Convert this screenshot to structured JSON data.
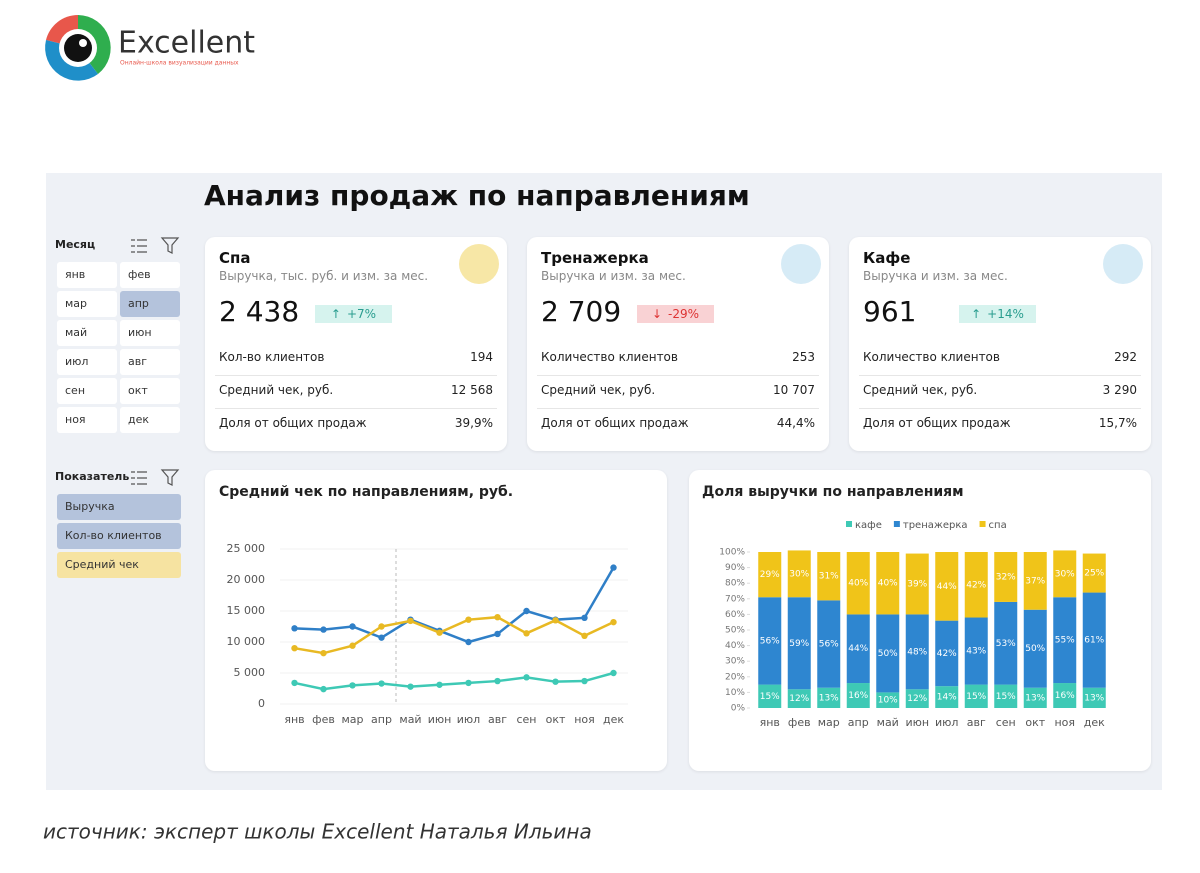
{
  "logo": {
    "brand": "Excellent",
    "tagline": "Онлайн-школа визуализации данных"
  },
  "title": "Анализ продаж по направлениям",
  "filters": {
    "month": {
      "label": "Месяц",
      "options": [
        {
          "label": "янв",
          "selected": false
        },
        {
          "label": "фев",
          "selected": false
        },
        {
          "label": "мар",
          "selected": false
        },
        {
          "label": "апр",
          "selected": true
        },
        {
          "label": "май",
          "selected": false
        },
        {
          "label": "июн",
          "selected": false
        },
        {
          "label": "июл",
          "selected": false
        },
        {
          "label": "авг",
          "selected": false
        },
        {
          "label": "сен",
          "selected": false
        },
        {
          "label": "окт",
          "selected": false
        },
        {
          "label": "ноя",
          "selected": false
        },
        {
          "label": "дек",
          "selected": false
        }
      ]
    },
    "indicator": {
      "label": "Показатель",
      "options": [
        {
          "label": "Выручка",
          "color": "#b4c3dc"
        },
        {
          "label": "Кол-во клиентов",
          "color": "#b4c3dc"
        },
        {
          "label": "Средний чек",
          "color": "#f6e3a1"
        }
      ]
    }
  },
  "cards": [
    {
      "title": "Спа",
      "subtitle": "Выручка, тыс. руб. и изм. за мес.",
      "value": "2 438",
      "change": "+7%",
      "direction": "up",
      "icon_color": "#f7e7a6",
      "rows": [
        [
          "Кол-во клиентов",
          "194"
        ],
        [
          "Средний чек, руб.",
          "12 568"
        ],
        [
          "Доля от общих продаж",
          "39,9%"
        ]
      ]
    },
    {
      "title": "Тренажерка",
      "subtitle": "Выручка и изм. за мес.",
      "value": "2 709",
      "change": "-29%",
      "direction": "down",
      "icon_color": "#d6ebf6",
      "rows": [
        [
          "Количество клиентов",
          "253"
        ],
        [
          "Средний чек, руб.",
          "10 707"
        ],
        [
          "Доля от общих продаж",
          "44,4%"
        ]
      ]
    },
    {
      "title": "Кафе",
      "subtitle": "Выручка и изм. за мес.",
      "value": "961",
      "change": "+14%",
      "direction": "up",
      "icon_color": "#d6ebf6",
      "rows": [
        [
          "Количество клиентов",
          "292"
        ],
        [
          "Средний чек, руб.",
          "3 290"
        ],
        [
          "Доля от общих продаж",
          "15,7%"
        ]
      ]
    }
  ],
  "chart_data": [
    {
      "type": "line",
      "title": "Средний чек по направлениям, руб.",
      "categories": [
        "янв",
        "фев",
        "мар",
        "апр",
        "май",
        "июн",
        "июл",
        "авг",
        "сен",
        "окт",
        "ноя",
        "дек"
      ],
      "series": [
        {
          "color": "#2f7fc7",
          "values": [
            12200,
            12000,
            12500,
            10700,
            13600,
            11800,
            10000,
            11300,
            15000,
            13600,
            13900,
            22000
          ]
        },
        {
          "color": "#e8b923",
          "values": [
            9000,
            8200,
            9400,
            12500,
            13400,
            11500,
            13600,
            14000,
            11400,
            13500,
            11000,
            13200
          ]
        },
        {
          "color": "#3ec9b5",
          "values": [
            3400,
            2400,
            3000,
            3300,
            2800,
            3100,
            3400,
            3700,
            4300,
            3600,
            3700,
            5000
          ]
        }
      ],
      "ylim": [
        0,
        25000
      ],
      "yticks": [
        0,
        {
          "value": 5000,
          "label": "5 000"
        },
        {
          "value": 10000,
          "label": "10 000"
        },
        {
          "value": 15000,
          "label": "15 000"
        },
        {
          "value": 20000,
          "label": "20 000"
        },
        {
          "value": 25000,
          "label": "25 000"
        }
      ],
      "grid": true
    },
    {
      "type": "bar",
      "stacked": true,
      "title": "Доля выручки по направлениям",
      "categories": [
        "янв",
        "фев",
        "мар",
        "апр",
        "май",
        "июн",
        "июл",
        "авг",
        "сен",
        "окт",
        "ноя",
        "дек"
      ],
      "series": [
        {
          "name": "кафе",
          "color": "#3ec9b5",
          "values": [
            15,
            12,
            13,
            16,
            10,
            12,
            14,
            15,
            15,
            13,
            16,
            13
          ],
          "value_labels": [
            "15%",
            "12%",
            "13%",
            "16%",
            "10%",
            "12%",
            "14%",
            "15%",
            "15%",
            "13%",
            "16%",
            "13%"
          ]
        },
        {
          "name": "тренажерка",
          "color": "#2e86d0",
          "values": [
            56,
            59,
            56,
            44,
            50,
            48,
            42,
            43,
            53,
            50,
            55,
            61
          ],
          "value_labels": [
            "56%",
            "59%",
            "56%",
            "44%",
            "50%",
            "48%",
            "42%",
            "43%",
            "53%",
            "50%",
            "55%",
            "61%"
          ]
        },
        {
          "name": "спа",
          "color": "#f0c419",
          "values": [
            29,
            30,
            31,
            40,
            40,
            39,
            44,
            42,
            32,
            37,
            30,
            25
          ],
          "value_labels": [
            "29%",
            "30%",
            "31%",
            "40%",
            "40%",
            "39%",
            "44%",
            "42%",
            "32%",
            "37%",
            "30%",
            "25%"
          ]
        }
      ],
      "ylim": [
        0,
        100
      ],
      "yticks": [
        {
          "value": 0,
          "label": "0%"
        },
        {
          "value": 10,
          "label": "10%"
        },
        {
          "value": 20,
          "label": "20%"
        },
        {
          "value": 30,
          "label": "30%"
        },
        {
          "value": 40,
          "label": "40%"
        },
        {
          "value": 50,
          "label": "50%"
        },
        {
          "value": 60,
          "label": "60%"
        },
        {
          "value": 70,
          "label": "70%"
        },
        {
          "value": 80,
          "label": "80%"
        },
        {
          "value": 90,
          "label": "90%"
        },
        {
          "value": 100,
          "label": "100%"
        }
      ],
      "legend": "top"
    }
  ],
  "source": "источник: эксперт школы Excellent Наталья Ильина"
}
